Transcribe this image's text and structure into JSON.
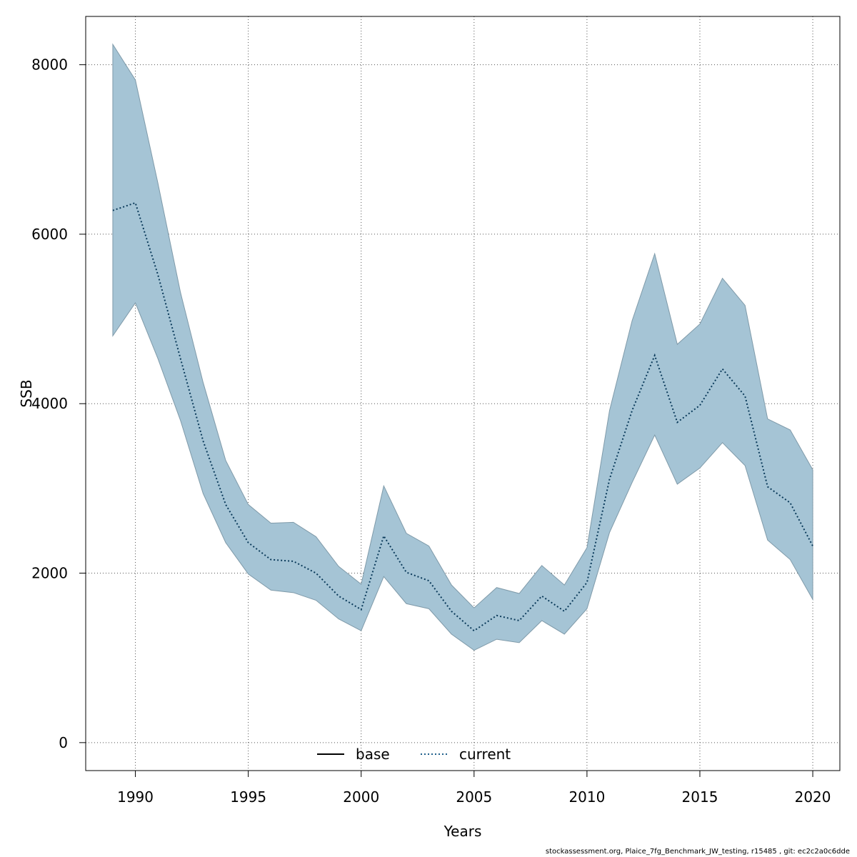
{
  "chart_data": {
    "type": "area",
    "xlabel": "Years",
    "ylabel": "SSB",
    "xlim": [
      1987.8,
      2021.2
    ],
    "ylim": [
      -330,
      8570
    ],
    "x_ticks": [
      1990,
      1995,
      2000,
      2005,
      2010,
      2015,
      2020
    ],
    "x_tick_labels": [
      "1990",
      "1995",
      "2000",
      "2005",
      "2010",
      "2015",
      "2020"
    ],
    "y_ticks": [
      0,
      2000,
      4000,
      6000,
      8000
    ],
    "y_tick_labels": [
      "0",
      "2000",
      "4000",
      "6000",
      "8000"
    ],
    "grid": true,
    "legend_position": "bottom",
    "legend": [
      {
        "label": "base",
        "style": "solid",
        "color": "#000000"
      },
      {
        "label": "current",
        "style": "dotted",
        "color": "#1f5f8b"
      }
    ],
    "x": [
      1989,
      1990,
      1991,
      1992,
      1993,
      1994,
      1995,
      1996,
      1997,
      1998,
      1999,
      2000,
      2001,
      2002,
      2003,
      2004,
      2005,
      2006,
      2007,
      2008,
      2009,
      2010,
      2011,
      2012,
      2013,
      2014,
      2015,
      2016,
      2017,
      2018,
      2019,
      2020
    ],
    "series": [
      {
        "name": "current",
        "values": [
          6280,
          6370,
          5520,
          4530,
          3560,
          2810,
          2360,
          2160,
          2140,
          2000,
          1730,
          1570,
          2440,
          2010,
          1910,
          1550,
          1320,
          1500,
          1440,
          1730,
          1550,
          1890,
          3110,
          3920,
          4570,
          3780,
          3980,
          4410,
          4090,
          3020,
          2830,
          2320
        ]
      }
    ],
    "confidence_band": {
      "lower": [
        4800,
        5190,
        4530,
        3800,
        2940,
        2360,
        1990,
        1800,
        1770,
        1680,
        1460,
        1320,
        1960,
        1640,
        1580,
        1280,
        1090,
        1220,
        1180,
        1440,
        1280,
        1580,
        2480,
        3070,
        3630,
        3050,
        3240,
        3540,
        3270,
        2390,
        2160,
        1690
      ],
      "upper": [
        8240,
        7820,
        6600,
        5310,
        4250,
        3330,
        2810,
        2590,
        2600,
        2430,
        2080,
        1870,
        3030,
        2470,
        2320,
        1860,
        1590,
        1830,
        1760,
        2090,
        1860,
        2300,
        3920,
        4980,
        5770,
        4700,
        4940,
        5480,
        5160,
        3820,
        3690,
        3220
      ]
    },
    "colors": {
      "band_fill": "#a5c4d5",
      "band_stroke": "#7f9aa9",
      "current_line": "#0a3a5a",
      "grid": "#555555"
    }
  },
  "footer": "stockassessment.org, Plaice_7fg_Benchmark_JW_testing, r15485 , git: ec2c2a0c6dde"
}
